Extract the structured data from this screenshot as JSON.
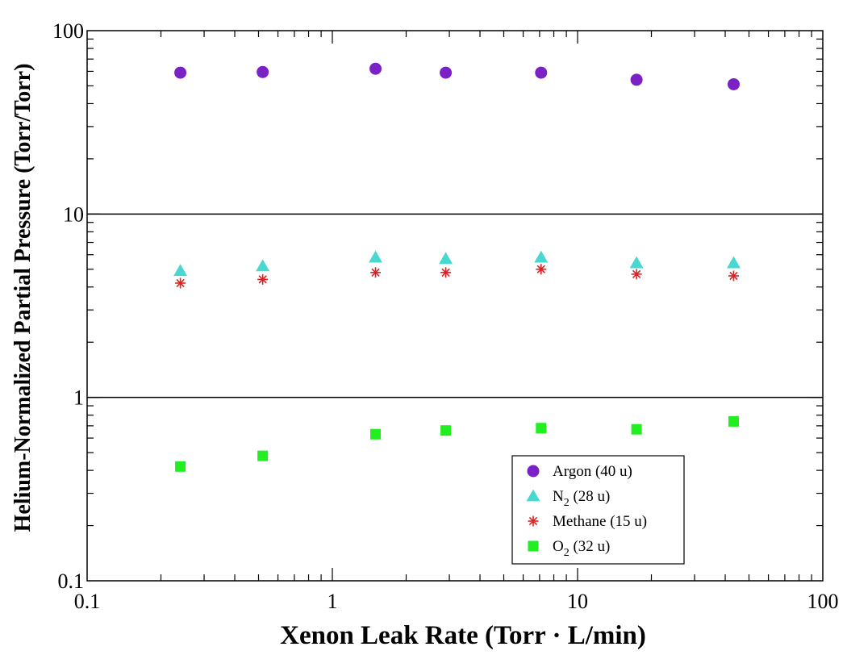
{
  "chart_data": {
    "type": "scatter",
    "title": "",
    "xlabel": "Xenon Leak Rate (Torr · L/min)",
    "ylabel": "Helium-Normalized Partial Pressure (Torr/Torr)",
    "xscale": "log",
    "yscale": "log",
    "xlim": [
      0.1,
      100
    ],
    "ylim": [
      0.1,
      100
    ],
    "x_ticks": [
      "0.1",
      "1",
      "10",
      "100"
    ],
    "y_ticks": [
      "0.1",
      "1",
      "10",
      "100"
    ],
    "grid": "horizontal lines at 1 and 10",
    "legend_position": "bottom-right",
    "x": [
      0.24,
      0.52,
      1.5,
      2.9,
      7.1,
      17.4,
      43.3
    ],
    "series": [
      {
        "name": "Argon (40 u)",
        "legend_main": "Argon (40 u)",
        "legend_sub": "",
        "legend_tail": "",
        "marker": "circle",
        "color": "#7a22c6",
        "values": [
          59,
          59.5,
          62,
          59,
          59,
          54,
          51
        ]
      },
      {
        "name": "N2 (28 u)",
        "legend_main": "N",
        "legend_sub": "2",
        "legend_tail": " (28 u)",
        "marker": "triangle",
        "color": "#48d8d0",
        "values": [
          4.9,
          5.2,
          5.8,
          5.7,
          5.8,
          5.4,
          5.4
        ]
      },
      {
        "name": "Methane (15 u)",
        "legend_main": "Methane (15 u)",
        "legend_sub": "",
        "legend_tail": "",
        "marker": "asterisk",
        "color": "#e02020",
        "values": [
          4.2,
          4.4,
          4.8,
          4.8,
          5.0,
          4.7,
          4.6
        ]
      },
      {
        "name": "O2 (32 u)",
        "legend_main": "O",
        "legend_sub": "2",
        "legend_tail": " (32 u)",
        "marker": "square",
        "color": "#22ee22",
        "values": [
          0.42,
          0.48,
          0.63,
          0.66,
          0.68,
          0.67,
          0.74
        ]
      }
    ]
  }
}
